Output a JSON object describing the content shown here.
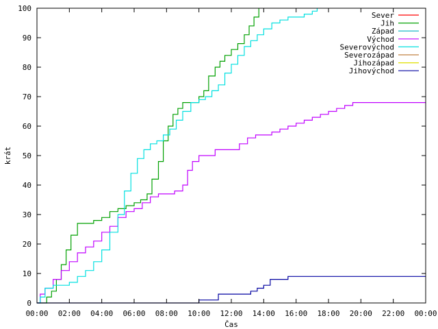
{
  "chart_data": {
    "type": "line",
    "title": "",
    "xlabel": "Čas",
    "ylabel": "krát",
    "xlim": [
      0,
      24
    ],
    "ylim": [
      0,
      100
    ],
    "x_ticks": [
      0,
      2,
      4,
      6,
      8,
      10,
      12,
      14,
      16,
      18,
      20,
      22,
      24
    ],
    "x_tick_labels": [
      "00:00",
      "02:00",
      "04:00",
      "06:00",
      "08:00",
      "10:00",
      "12:00",
      "14:00",
      "16:00",
      "18:00",
      "20:00",
      "22:00",
      "00:00"
    ],
    "y_ticks": [
      0,
      10,
      20,
      30,
      40,
      50,
      60,
      70,
      80,
      90,
      100
    ],
    "y_tick_labels": [
      "0",
      "10",
      "20",
      "30",
      "40",
      "50",
      "60",
      "70",
      "80",
      "90",
      "100"
    ],
    "grid": false,
    "legend_position": "top-right",
    "series": [
      {
        "name": "Sever",
        "color": "#ff0000",
        "x": [],
        "y": []
      },
      {
        "name": "Jih",
        "color": "#00a000",
        "x": [
          0,
          0.3,
          0.6,
          0.9,
          1.2,
          1.5,
          1.8,
          2.1,
          2.5,
          3.0,
          3.5,
          4.0,
          4.5,
          5.0,
          5.5,
          6.0,
          6.4,
          6.8,
          7.1,
          7.5,
          7.8,
          8.1,
          8.4,
          8.7,
          9.0,
          9.5,
          10.0,
          10.3,
          10.6,
          11.0,
          11.3,
          11.6,
          12.0,
          12.4,
          12.8,
          13.1,
          13.4,
          13.7
        ],
        "y": [
          0,
          0,
          2,
          4,
          8,
          13,
          18,
          23,
          27,
          27,
          28,
          29,
          31,
          32,
          33,
          34,
          35,
          37,
          42,
          48,
          55,
          60,
          64,
          66,
          68,
          68,
          70,
          72,
          77,
          80,
          82,
          84,
          86,
          88,
          91,
          94,
          97,
          100
        ]
      },
      {
        "name": "Západ",
        "color": "#00b0c0",
        "x": [],
        "y": []
      },
      {
        "name": "Východ",
        "color": "#c000ff",
        "x": [
          0,
          0.2,
          0.5,
          1.0,
          1.5,
          2.0,
          2.5,
          3.0,
          3.5,
          4.0,
          4.5,
          5.0,
          5.5,
          6.0,
          6.5,
          7.0,
          7.5,
          8.0,
          8.5,
          9.0,
          9.3,
          9.6,
          10.0,
          10.5,
          11.0,
          11.5,
          12.0,
          12.5,
          13.0,
          13.5,
          14.0,
          14.5,
          15.0,
          15.5,
          16.0,
          16.5,
          17.0,
          17.5,
          18.0,
          18.5,
          19.0,
          19.5,
          20.0,
          21.0,
          22.0,
          23.0,
          24.0
        ],
        "y": [
          0,
          3,
          5,
          8,
          11,
          14,
          17,
          19,
          21,
          24,
          26,
          29,
          31,
          32,
          34,
          36,
          37,
          37,
          38,
          40,
          45,
          48,
          50,
          50,
          52,
          52,
          52,
          54,
          56,
          57,
          57,
          58,
          59,
          60,
          61,
          62,
          63,
          64,
          65,
          66,
          67,
          68,
          68,
          68,
          68,
          68,
          68
        ]
      },
      {
        "name": "Severovýchod",
        "color": "#00e0e0",
        "x": [
          0,
          0.2,
          0.5,
          1.0,
          1.5,
          2.0,
          2.5,
          3.0,
          3.5,
          4.0,
          4.5,
          5.0,
          5.4,
          5.8,
          6.2,
          6.6,
          7.0,
          7.4,
          7.8,
          8.2,
          8.6,
          9.0,
          9.5,
          10.0,
          10.4,
          10.8,
          11.2,
          11.6,
          12.0,
          12.4,
          12.8,
          13.2,
          13.6,
          14.0,
          14.5,
          15.0,
          15.5,
          16.0,
          16.5,
          17.0,
          17.3
        ],
        "y": [
          0,
          2,
          5,
          6,
          6,
          7,
          9,
          11,
          14,
          18,
          24,
          30,
          38,
          44,
          49,
          52,
          54,
          55,
          57,
          59,
          62,
          65,
          68,
          69,
          70,
          72,
          74,
          78,
          81,
          84,
          87,
          89,
          91,
          93,
          95,
          96,
          97,
          97,
          98,
          99,
          100
        ]
      },
      {
        "name": "Severozápad",
        "color": "#c08040",
        "x": [],
        "y": []
      },
      {
        "name": "Jihozápad",
        "color": "#e0e000",
        "x": [],
        "y": []
      },
      {
        "name": "Jihovýchod",
        "color": "#0000a0",
        "x": [
          0,
          9.9,
          10.0,
          11.0,
          11.2,
          12.6,
          13.2,
          13.6,
          14.0,
          14.4,
          15.0,
          15.5,
          16.0,
          18.0,
          20.0,
          22.0,
          24.0
        ],
        "y": [
          0,
          0,
          1,
          1,
          3,
          3,
          4,
          5,
          6,
          8,
          8,
          9,
          9,
          9,
          9,
          9,
          9
        ]
      }
    ]
  }
}
